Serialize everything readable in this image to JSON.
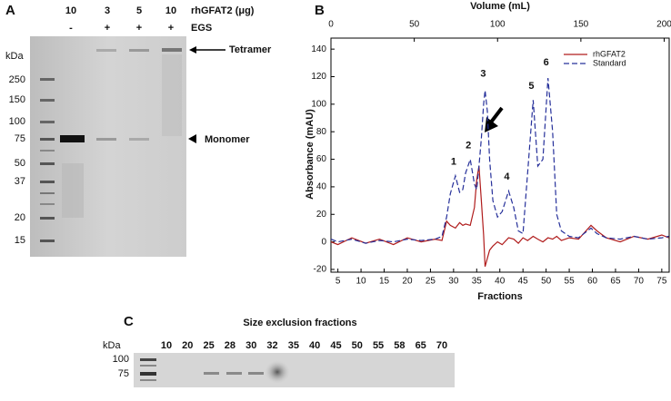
{
  "panel_a": {
    "letter": "A",
    "loads": [
      "10",
      "3",
      "5",
      "10"
    ],
    "load_label": "rhGFAT2 (μg)",
    "egs": [
      "-",
      "+",
      "+",
      "+"
    ],
    "egs_label": "EGS",
    "unit": "kDa",
    "markers": [
      "250",
      "150",
      "100",
      "75",
      "50",
      "37",
      "20",
      "15"
    ],
    "tetramer": "Tetramer",
    "monomer": "Monomer"
  },
  "chart_data": {
    "type": "line",
    "letter": "B",
    "x2label": "Volume (mL)",
    "xlabel": "Fractions",
    "ylabel": "Absorbance (mAU)",
    "x": [
      3.5,
      5,
      8,
      11,
      14,
      17,
      20,
      23,
      26,
      27.5,
      28.5,
      29.3,
      30.4,
      31.3,
      32,
      32.6,
      33.6,
      34.5,
      35,
      35.5,
      36,
      36.5,
      36.8,
      37.3,
      37.8,
      38.5,
      39.5,
      40.5,
      41.9,
      43,
      44,
      45,
      46,
      47.2,
      48.2,
      49.3,
      50.4,
      51.4,
      52.3,
      53.3,
      55,
      57,
      59.7,
      61,
      63,
      66,
      69,
      72,
      75,
      76.5
    ],
    "series": [
      {
        "name": "rhGFAT2",
        "color": "#b01c1c",
        "dashed": false,
        "values": [
          0,
          -2,
          3,
          -1,
          2,
          -2,
          3,
          0,
          2,
          1,
          15,
          12,
          10,
          14,
          12,
          13,
          12,
          25,
          45,
          55,
          30,
          5,
          -18,
          -12,
          -6,
          -3,
          0,
          -2,
          3,
          2,
          -1,
          3,
          1,
          4,
          2,
          0,
          3,
          2,
          4,
          1,
          3,
          2,
          12,
          8,
          3,
          0,
          4,
          2,
          5,
          3
        ]
      },
      {
        "name": "Standard",
        "color": "#26309a",
        "dashed": true,
        "values": [
          2,
          0,
          2,
          -1,
          1,
          0,
          2,
          1,
          2,
          4,
          18,
          35,
          48,
          36,
          38,
          50,
          60,
          42,
          38,
          55,
          75,
          100,
          110,
          95,
          60,
          30,
          18,
          22,
          37,
          25,
          8,
          6,
          50,
          103,
          55,
          60,
          119,
          80,
          20,
          8,
          4,
          3,
          10,
          6,
          3,
          2,
          4,
          2,
          3,
          4
        ]
      }
    ],
    "annotations": [
      "1",
      "2",
      "3",
      "4",
      "5",
      "6"
    ],
    "xlim": [
      3.5,
      76.6
    ],
    "xticks": [
      5,
      10,
      15,
      20,
      25,
      30,
      35,
      40,
      45,
      50,
      55,
      60,
      65,
      70,
      75
    ],
    "x2lim": [
      0,
      203
    ],
    "x2ticks": [
      0,
      50,
      100,
      150,
      200
    ],
    "ylim": [
      -22,
      148
    ],
    "yticks": [
      -20,
      0,
      20,
      40,
      60,
      80,
      100,
      120,
      140
    ],
    "grid": false,
    "legend": "top-right"
  },
  "panel_c": {
    "letter": "C",
    "title": "Size exclusion fractions",
    "unit": "kDa",
    "markers": [
      "100",
      "75"
    ],
    "fractions": [
      "10",
      "20",
      "25",
      "28",
      "30",
      "32",
      "35",
      "40",
      "45",
      "50",
      "55",
      "58",
      "65",
      "70"
    ]
  }
}
